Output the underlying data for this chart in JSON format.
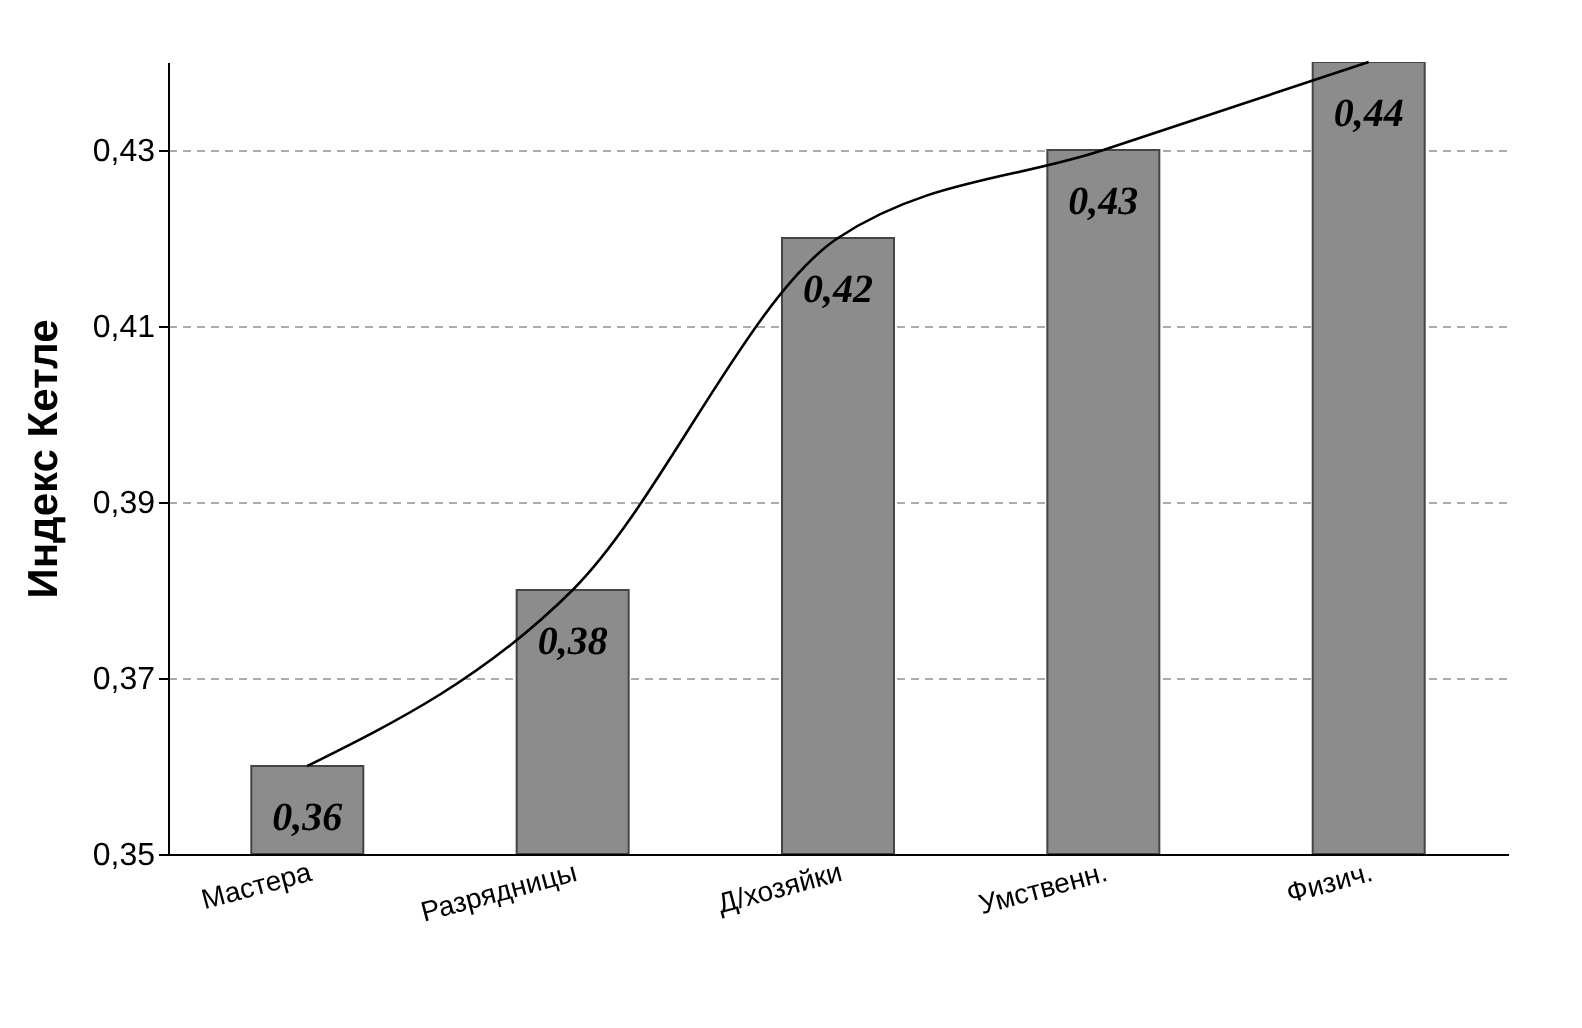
{
  "chart_data": {
    "type": "bar",
    "ylabel": "Индекс Кетле",
    "categories": [
      "Мастера",
      "Разрядницы",
      "Д/хозяйки",
      "Умственн.",
      "Физич."
    ],
    "series": [
      {
        "color": "#8c8c8c",
        "values": [
          0.36,
          0.38,
          0.42,
          0.43,
          0.44
        ],
        "value_labels": [
          "0,36",
          "0,38",
          "0,42",
          "0,43",
          "0,44"
        ]
      },
      {
        "type": "line",
        "color": "#000000",
        "values": [
          0.36,
          0.38,
          0.42,
          0.43,
          0.44
        ],
        "marker": "none"
      }
    ],
    "ylim": [
      0.35,
      0.44
    ],
    "yticks": [
      {
        "value": 0.35,
        "label": "0,35"
      },
      {
        "value": 0.37,
        "label": "0,37"
      },
      {
        "value": 0.39,
        "label": "0,39"
      },
      {
        "value": 0.41,
        "label": "0,41"
      },
      {
        "value": 0.43,
        "label": "0,43"
      }
    ],
    "grid": "y"
  }
}
